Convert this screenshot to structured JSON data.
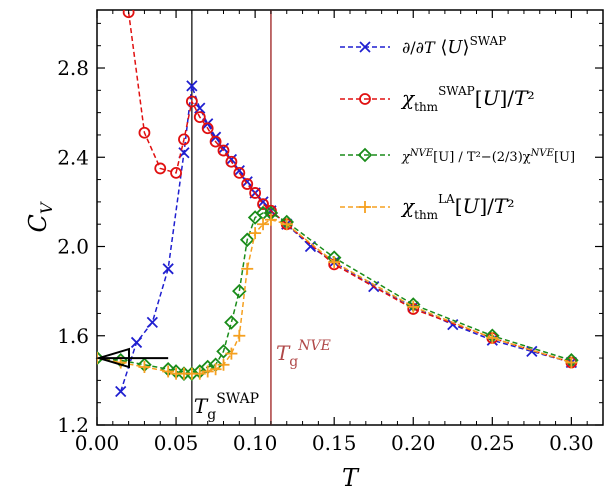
{
  "chart_data": {
    "type": "line",
    "xlabel": "T",
    "ylabel": "C_V",
    "xlim": [
      0.0,
      0.32
    ],
    "ylim": [
      1.2,
      3.06
    ],
    "xticks": [
      "0.00",
      "0.05",
      "0.10",
      "0.15",
      "0.20",
      "0.25",
      "0.30"
    ],
    "xtick_values": [
      0.0,
      0.05,
      0.1,
      0.15,
      0.2,
      0.25,
      0.3
    ],
    "yticks": [
      "1.2",
      "1.6",
      "2.0",
      "2.4",
      "2.8"
    ],
    "ytick_values": [
      1.2,
      1.6,
      2.0,
      2.4,
      2.8
    ],
    "grid": false,
    "legend_position": "top-right",
    "series": [
      {
        "name": "∂/∂T ⟨U⟩^SWAP",
        "color": "#1f1fd0",
        "marker": "x",
        "x": [
          0.015,
          0.025,
          0.035,
          0.045,
          0.055,
          0.06,
          0.065,
          0.07,
          0.075,
          0.08,
          0.085,
          0.09,
          0.095,
          0.1,
          0.105,
          0.11,
          0.12,
          0.135,
          0.15,
          0.175,
          0.2,
          0.225,
          0.25,
          0.275,
          0.3
        ],
        "y": [
          1.35,
          1.57,
          1.66,
          1.9,
          2.42,
          2.72,
          2.62,
          2.55,
          2.49,
          2.44,
          2.39,
          2.34,
          2.29,
          2.24,
          2.2,
          2.16,
          2.1,
          2.0,
          1.93,
          1.82,
          1.73,
          1.65,
          1.58,
          1.53,
          1.48
        ]
      },
      {
        "name": "χ_thm^SWAP[U]/T²",
        "color": "#e01010",
        "marker": "o",
        "x": [
          0.02,
          0.03,
          0.04,
          0.05,
          0.055,
          0.06,
          0.065,
          0.07,
          0.075,
          0.08,
          0.085,
          0.09,
          0.095,
          0.1,
          0.105,
          0.11,
          0.12,
          0.15,
          0.2,
          0.25,
          0.3
        ],
        "y": [
          3.05,
          2.51,
          2.35,
          2.33,
          2.48,
          2.65,
          2.58,
          2.53,
          2.47,
          2.43,
          2.38,
          2.33,
          2.28,
          2.24,
          2.19,
          2.16,
          2.1,
          1.92,
          1.72,
          1.59,
          1.48
        ]
      },
      {
        "name": "χ_thm^NVE[U] / (T² − (2/3) χ_thm^NVE[U])",
        "color": "#1a8c1a",
        "marker": "D",
        "x": [
          0.0,
          0.015,
          0.03,
          0.045,
          0.05,
          0.055,
          0.06,
          0.065,
          0.07,
          0.075,
          0.08,
          0.085,
          0.09,
          0.095,
          0.1,
          0.105,
          0.11,
          0.12,
          0.15,
          0.2,
          0.25,
          0.3
        ],
        "y": [
          1.5,
          1.49,
          1.47,
          1.45,
          1.44,
          1.43,
          1.43,
          1.44,
          1.46,
          1.47,
          1.53,
          1.66,
          1.8,
          2.03,
          2.13,
          2.15,
          2.15,
          2.11,
          1.95,
          1.74,
          1.6,
          1.49
        ]
      },
      {
        "name": "χ_thm^LA[U]/T²",
        "color": "#f5a020",
        "marker": "+",
        "x": [
          0.0,
          0.015,
          0.03,
          0.045,
          0.05,
          0.055,
          0.06,
          0.065,
          0.07,
          0.075,
          0.08,
          0.085,
          0.09,
          0.095,
          0.1,
          0.105,
          0.11,
          0.12,
          0.15,
          0.2,
          0.25,
          0.3
        ],
        "y": [
          1.5,
          1.48,
          1.46,
          1.44,
          1.43,
          1.43,
          1.43,
          1.43,
          1.44,
          1.45,
          1.47,
          1.52,
          1.6,
          1.9,
          2.06,
          2.1,
          2.12,
          2.1,
          1.93,
          1.73,
          1.59,
          1.48
        ]
      }
    ],
    "vlines": [
      {
        "x": 0.06,
        "color": "#000000",
        "label_main": "T",
        "label_sub": "g",
        "label_sup": "SWAP"
      },
      {
        "x": 0.11,
        "color": "#b04848",
        "label_main": "T",
        "label_sub": "g",
        "label_sup": "NVE"
      }
    ],
    "arrow": {
      "from_x": 0.045,
      "to_x": 0.0,
      "y": 1.5,
      "color": "#000000"
    }
  }
}
